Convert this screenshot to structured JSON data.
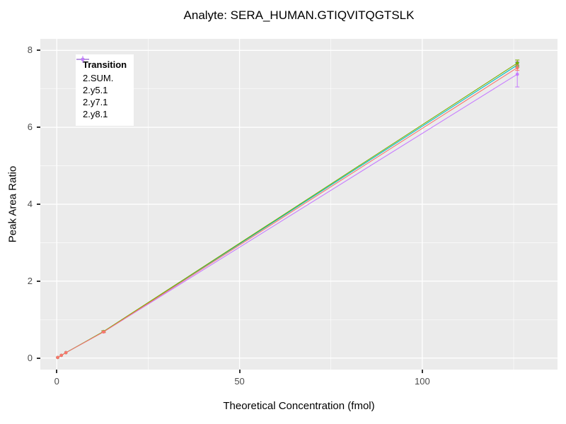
{
  "chart": {
    "title": "Analyte: SERA_HUMAN.GTIQVITQGTSLK",
    "xlabel": "Theoretical Concentration (fmol)",
    "ylabel": "Peak Area Ratio",
    "legend_title": "Transition"
  },
  "chart_data": {
    "type": "line",
    "title": "Analyte: SERA_HUMAN.GTIQVITQGTSLK",
    "xlabel": "Theoretical Concentration (fmol)",
    "ylabel": "Peak Area Ratio",
    "xlim": [
      -4.5,
      137
    ],
    "ylim": [
      -0.3,
      8.3
    ],
    "x_major_ticks": [
      0,
      50,
      100
    ],
    "x_minor_ticks": [
      25,
      75,
      125
    ],
    "y_major_ticks": [
      0,
      2,
      4,
      6,
      8
    ],
    "y_minor_ticks": [
      1,
      3,
      5,
      7
    ],
    "grid": true,
    "panel_bg": "#EBEBEB",
    "grid_major_color": "#FFFFFF",
    "grid_minor_color": "#FFFFFF",
    "legend": {
      "title": "Transition",
      "position": "top-left inside panel"
    },
    "x": [
      0.25,
      1.25,
      2.5,
      12.8,
      126
    ],
    "series": [
      {
        "name": "2.SUM.",
        "color": "#F8766D",
        "y": [
          0.015,
          0.07,
          0.14,
          0.68,
          7.55
        ],
        "yerr": [
          0,
          0,
          0,
          0.02,
          0.07
        ]
      },
      {
        "name": "2.y5.1",
        "color": "#7CAE00",
        "y": [
          0.015,
          0.07,
          0.14,
          0.69,
          7.67
        ],
        "yerr": [
          0,
          0,
          0,
          0.02,
          0.08
        ]
      },
      {
        "name": "2.y7.1",
        "color": "#00BFC4",
        "y": [
          0.015,
          0.07,
          0.14,
          0.69,
          7.62
        ],
        "yerr": [
          0,
          0,
          0,
          0.02,
          0.06
        ]
      },
      {
        "name": "2.y8.1",
        "color": "#C77CFF",
        "y": [
          0.015,
          0.07,
          0.14,
          0.68,
          7.38
        ],
        "yerr": [
          0,
          0,
          0,
          0.02,
          0.33
        ]
      }
    ]
  }
}
